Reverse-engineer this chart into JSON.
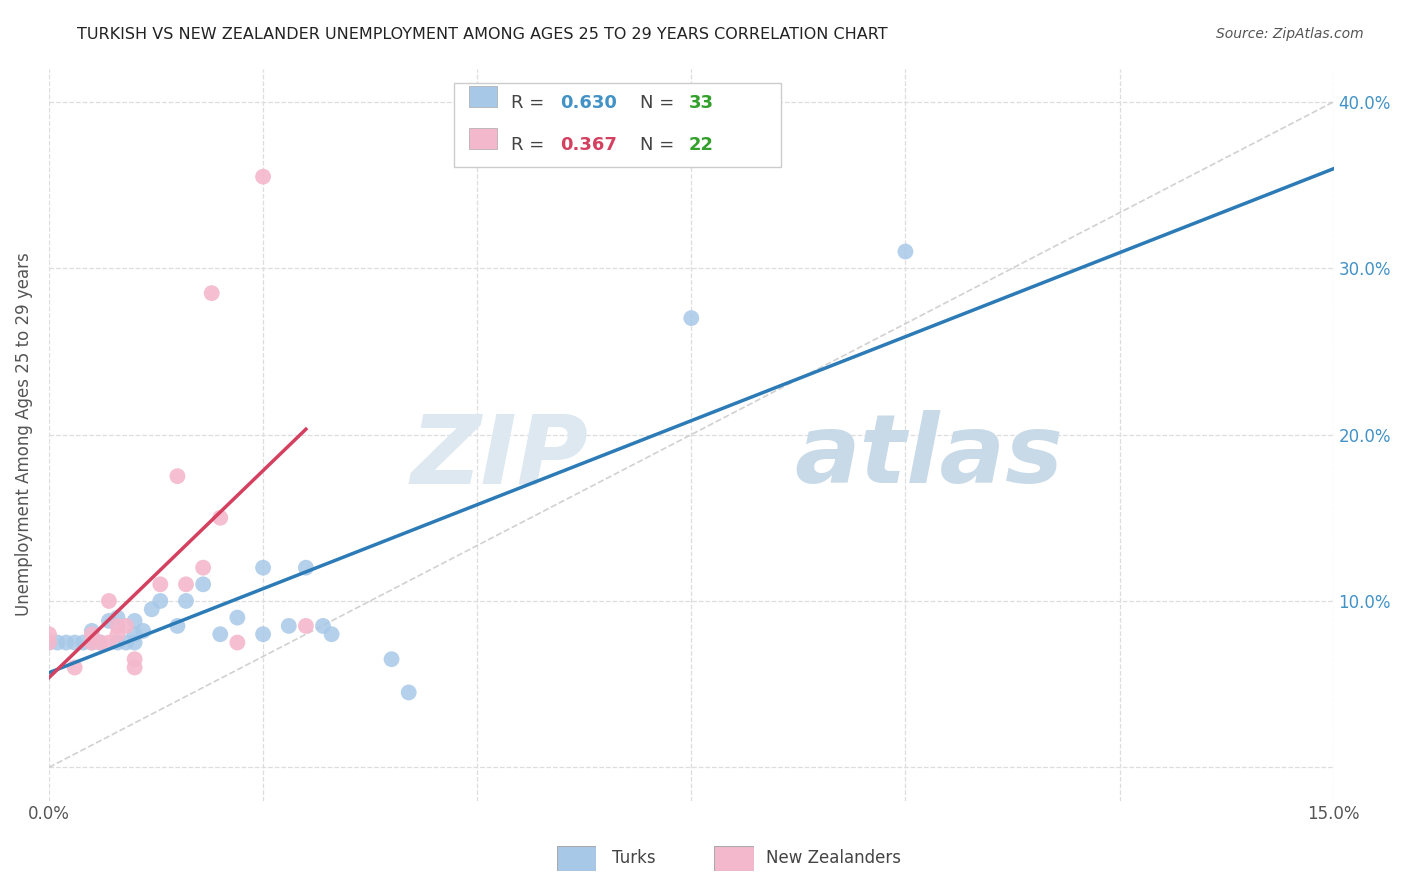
{
  "title": "TURKISH VS NEW ZEALANDER UNEMPLOYMENT AMONG AGES 25 TO 29 YEARS CORRELATION CHART",
  "source": "Source: ZipAtlas.com",
  "ylabel": "Unemployment Among Ages 25 to 29 years",
  "xlim": [
    0.0,
    0.15
  ],
  "ylim": [
    -0.02,
    0.42
  ],
  "xticks": [
    0.0,
    0.025,
    0.05,
    0.075,
    0.1,
    0.125,
    0.15
  ],
  "xtick_labels": [
    "0.0%",
    "",
    "",
    "",
    "",
    "",
    "15.0%"
  ],
  "yticks": [
    0.0,
    0.1,
    0.2,
    0.3,
    0.4
  ],
  "ytick_labels": [
    "",
    "10.0%",
    "20.0%",
    "30.0%",
    "40.0%"
  ],
  "blue_R": "0.630",
  "blue_N": "33",
  "pink_R": "0.367",
  "pink_N": "22",
  "blue_color": "#a8c8e8",
  "pink_color": "#f4b8cc",
  "blue_line_color": "#2c7bb6",
  "pink_line_color": "#d44060",
  "diagonal_color": "#cccccc",
  "text_color": "#555555",
  "blue_label_color": "#4292c6",
  "green_label_color": "#33a02c",
  "pink_label_color": "#d44060",
  "watermark_zip_color": "#dde8f0",
  "watermark_atlas_color": "#c8dae8",
  "turks_x": [
    0.0,
    0.001,
    0.002,
    0.003,
    0.004,
    0.005,
    0.005,
    0.006,
    0.007,
    0.008,
    0.008,
    0.009,
    0.01,
    0.01,
    0.01,
    0.011,
    0.012,
    0.013,
    0.015,
    0.016,
    0.018,
    0.02,
    0.022,
    0.025,
    0.025,
    0.028,
    0.03,
    0.032,
    0.033,
    0.04,
    0.042,
    0.075,
    0.1
  ],
  "turks_y": [
    0.075,
    0.075,
    0.075,
    0.075,
    0.075,
    0.075,
    0.082,
    0.075,
    0.088,
    0.075,
    0.09,
    0.075,
    0.075,
    0.08,
    0.088,
    0.082,
    0.095,
    0.1,
    0.085,
    0.1,
    0.11,
    0.08,
    0.09,
    0.08,
    0.12,
    0.085,
    0.12,
    0.085,
    0.08,
    0.065,
    0.045,
    0.27,
    0.31
  ],
  "nz_x": [
    0.0,
    0.0,
    0.003,
    0.005,
    0.005,
    0.006,
    0.007,
    0.007,
    0.008,
    0.008,
    0.009,
    0.01,
    0.01,
    0.013,
    0.015,
    0.016,
    0.018,
    0.019,
    0.02,
    0.022,
    0.025,
    0.03
  ],
  "nz_y": [
    0.075,
    0.08,
    0.06,
    0.075,
    0.08,
    0.075,
    0.075,
    0.1,
    0.08,
    0.085,
    0.085,
    0.065,
    0.06,
    0.11,
    0.175,
    0.11,
    0.12,
    0.285,
    0.15,
    0.075,
    0.355,
    0.085
  ]
}
